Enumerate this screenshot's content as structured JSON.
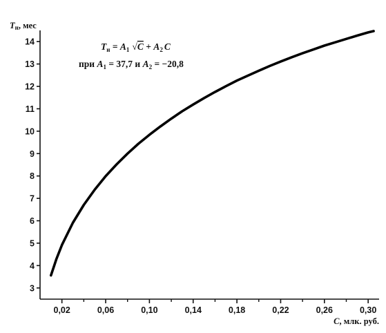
{
  "chart_data": {
    "type": "line",
    "title": "",
    "xlabel_var": "C",
    "xlabel_unit": ", млк. руб.",
    "ylabel_var": "T",
    "ylabel_sub": "н",
    "ylabel_unit": ", мес",
    "xlim": [
      0.0,
      0.31
    ],
    "ylim": [
      2.5,
      14.5
    ],
    "x_ticks": [
      0.02,
      0.06,
      0.1,
      0.14,
      0.18,
      0.22,
      0.26,
      0.3
    ],
    "x_tick_labels": [
      "0,02",
      "0,06",
      "0,10",
      "0,14",
      "0,18",
      "0,22",
      "0,26",
      "0,30"
    ],
    "x_minor_ticks": [
      0.04,
      0.08,
      0.12,
      0.16,
      0.2,
      0.24,
      0.28
    ],
    "y_ticks": [
      3,
      4,
      5,
      6,
      7,
      8,
      9,
      10,
      11,
      12,
      13,
      14
    ],
    "y_tick_labels": [
      "3",
      "4",
      "5",
      "6",
      "7",
      "8",
      "9",
      "10",
      "11",
      "12",
      "13",
      "14"
    ],
    "grid": false,
    "line_color": "#000000",
    "series": [
      {
        "x": [
          0.01,
          0.015,
          0.02,
          0.03,
          0.04,
          0.05,
          0.06,
          0.07,
          0.08,
          0.09,
          0.1,
          0.11,
          0.12,
          0.13,
          0.14,
          0.15,
          0.16,
          0.17,
          0.18,
          0.19,
          0.2,
          0.21,
          0.22,
          0.23,
          0.24,
          0.25,
          0.26,
          0.27,
          0.28,
          0.29,
          0.3,
          0.305
        ],
        "values": [
          3.56,
          4.3,
          4.92,
          5.91,
          6.71,
          7.39,
          7.99,
          8.52,
          9.0,
          9.44,
          9.84,
          10.21,
          10.56,
          10.89,
          11.19,
          11.48,
          11.75,
          12.01,
          12.26,
          12.48,
          12.7,
          12.91,
          13.11,
          13.3,
          13.48,
          13.65,
          13.82,
          13.97,
          14.12,
          14.27,
          14.41,
          14.47
        ]
      }
    ],
    "annotation": {
      "formula": {
        "lhs_var": "T",
        "lhs_sub": "н",
        "eq": " = ",
        "a1_var": "A",
        "a1_sub": "1",
        "sqrt_arg": "C",
        "plus": " + ",
        "a2_var": "A",
        "a2_sub": "2",
        "c_var": "C"
      },
      "params": {
        "prefix": "при ",
        "a1_var": "A",
        "a1_sub": "1",
        "a1_eq": " = 37,7 и ",
        "a2_var": "A",
        "a2_sub": "2",
        "a2_eq": " = −20,8"
      }
    }
  }
}
